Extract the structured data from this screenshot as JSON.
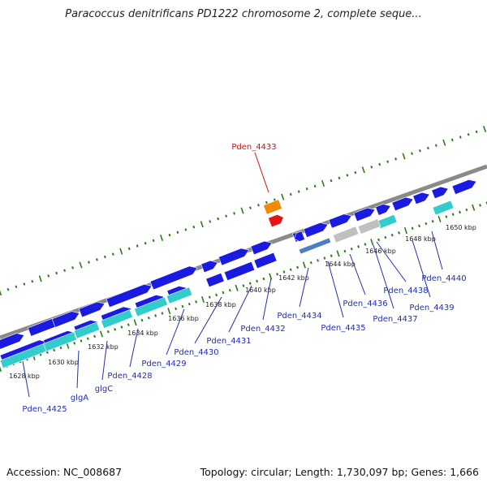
{
  "title": "Paracoccus denitrificans PD1222 chromosome 2, complete seque...",
  "footer": {
    "accession": "Accession: NC_008687",
    "summary": "Topology: circular; Length: 1,730,097 bp; Genes: 1,666"
  },
  "ruler_labels": [
    "1628 kbp",
    "1630 kbp",
    "1632 kbp",
    "1634 kbp",
    "1636 kbp",
    "1638 kbp",
    "1640 kbp",
    "1642 kbp",
    "1644 kbp",
    "1646 kbp",
    "1648 kbp",
    "1650 kbp"
  ],
  "gene_labels": [
    "Pden_4425",
    "glgA",
    "glgC",
    "Pden_4428",
    "Pden_4429",
    "Pden_4430",
    "Pden_4431",
    "Pden_4432",
    "Pden_4433",
    "Pden_4434",
    "Pden_4435",
    "Pden_4436",
    "Pden_4437",
    "Pden_4438",
    "Pden_4439",
    "Pden_4440"
  ],
  "colors": {
    "backbone": "#8a8a8a",
    "gene_forward": "#1a1ae0",
    "cds": "#33cccc",
    "highlight_orange": "#f08a00",
    "highlight_red": "#e51515",
    "pseudo_gray": "#c0c0c0",
    "steelblue": "#4a7fc0",
    "ticks": "#2a7a1a"
  }
}
